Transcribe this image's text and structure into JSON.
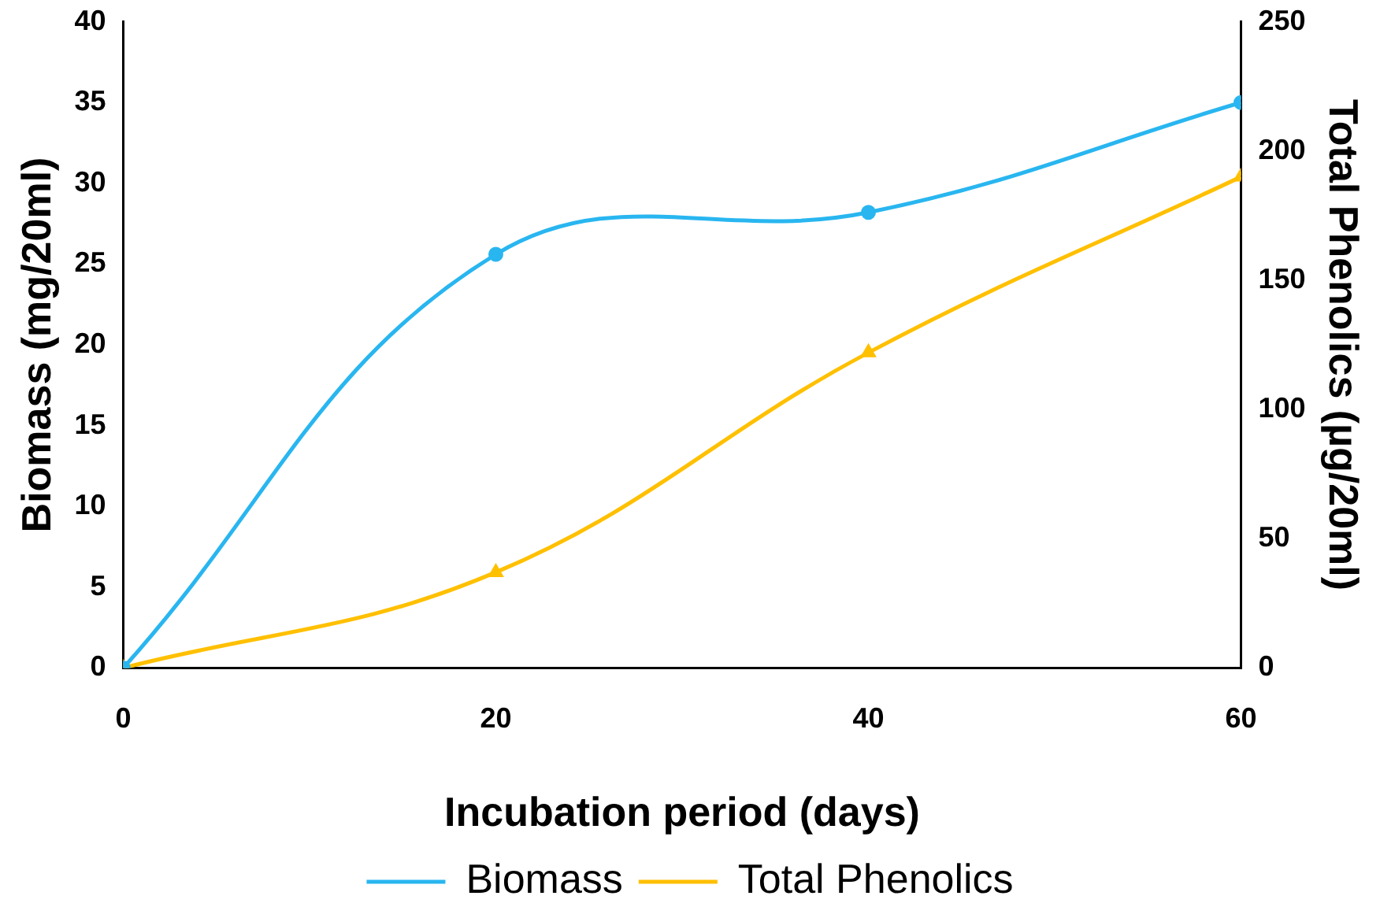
{
  "chart_data": {
    "type": "line",
    "xlabel": "Incubation period (days)",
    "ylabel": "Biomass (mg/20ml)",
    "y2label": "Total Phenolics (µg/20ml)",
    "x": [
      0,
      20,
      40,
      60
    ],
    "series": [
      {
        "name": "Biomass",
        "color": "#29b6f0",
        "values": [
          0,
          25.6,
          28.2,
          35
        ],
        "marker": "circle"
      },
      {
        "name": "Total Phenolics",
        "color": "#ffc000",
        "values": [
          0,
          37,
          122,
          190
        ],
        "axis": "y2",
        "marker": "triangle"
      }
    ],
    "xlim": [
      0,
      60
    ],
    "xticks": [
      0,
      20,
      40,
      60
    ],
    "ylim": [
      0,
      40
    ],
    "yticks": [
      0,
      5,
      10,
      15,
      20,
      25,
      30,
      35,
      40
    ],
    "y2lim": [
      0,
      250
    ],
    "y2ticks": [
      0,
      50,
      100,
      150,
      200,
      250
    ],
    "grid": false,
    "legend": "bottom",
    "line_style": "solid"
  }
}
